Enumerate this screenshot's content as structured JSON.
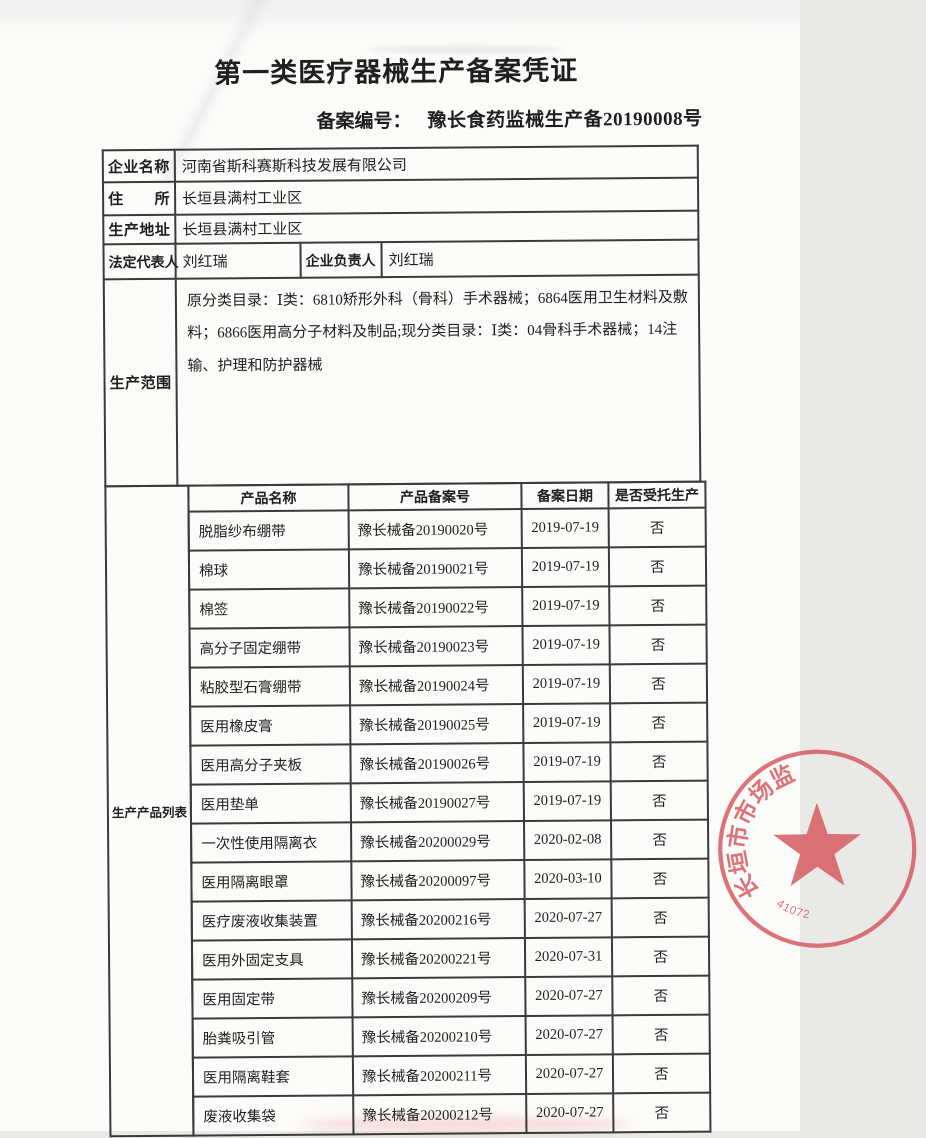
{
  "page": {
    "title": "第一类医疗器械生产备案凭证",
    "record_no_label": "备案编号：",
    "record_no_value": "豫长食药监械生产备20190008号"
  },
  "info": {
    "company_name_label": "企业名称",
    "company_name": "河南省斯科赛斯科技发展有限公司",
    "residence_label": "住　　所",
    "residence": "长垣县满村工业区",
    "production_address_label": "生产地址",
    "production_address": "长垣县满村工业区",
    "legal_rep_label": "法定代表人",
    "legal_rep": "刘红瑞",
    "company_manager_label": "企业负责人",
    "company_manager": "刘红瑞",
    "scope_label": "生产范围",
    "scope": "原分类目录：Ⅰ类：6810矫形外科（骨科）手术器械；6864医用卫生材料及敷料；6866医用高分子材料及制品;现分类目录：Ⅰ类：04骨科手术器械；14注输、护理和防护器械"
  },
  "products": {
    "section_label": "生产产品列表",
    "columns": [
      "产品名称",
      "产品备案号",
      "备案日期",
      "是否受托生产"
    ],
    "rows": [
      {
        "name": "脱脂纱布绷带",
        "record_no": "豫长械备20190020号",
        "date": "2019-07-19",
        "entrusted": "否"
      },
      {
        "name": "棉球",
        "record_no": "豫长械备20190021号",
        "date": "2019-07-19",
        "entrusted": "否"
      },
      {
        "name": "棉签",
        "record_no": "豫长械备20190022号",
        "date": "2019-07-19",
        "entrusted": "否"
      },
      {
        "name": "高分子固定绷带",
        "record_no": "豫长械备20190023号",
        "date": "2019-07-19",
        "entrusted": "否"
      },
      {
        "name": "粘胶型石膏绷带",
        "record_no": "豫长械备20190024号",
        "date": "2019-07-19",
        "entrusted": "否"
      },
      {
        "name": "医用橡皮膏",
        "record_no": "豫长械备20190025号",
        "date": "2019-07-19",
        "entrusted": "否"
      },
      {
        "name": "医用高分子夹板",
        "record_no": "豫长械备20190026号",
        "date": "2019-07-19",
        "entrusted": "否"
      },
      {
        "name": "医用垫单",
        "record_no": "豫长械备20190027号",
        "date": "2019-07-19",
        "entrusted": "否"
      },
      {
        "name": "一次性使用隔离衣",
        "record_no": "豫长械备20200029号",
        "date": "2020-02-08",
        "entrusted": "否"
      },
      {
        "name": "医用隔离眼罩",
        "record_no": "豫长械备20200097号",
        "date": "2020-03-10",
        "entrusted": "否"
      },
      {
        "name": "医疗废液收集装置",
        "record_no": "豫长械备20200216号",
        "date": "2020-07-27",
        "entrusted": "否"
      },
      {
        "name": "医用外固定支具",
        "record_no": "豫长械备20200221号",
        "date": "2020-07-31",
        "entrusted": "否"
      },
      {
        "name": "医用固定带",
        "record_no": "豫长械备20200209号",
        "date": "2020-07-27",
        "entrusted": "否"
      },
      {
        "name": "胎粪吸引管",
        "record_no": "豫长械备20200210号",
        "date": "2020-07-27",
        "entrusted": "否"
      },
      {
        "name": "医用隔离鞋套",
        "record_no": "豫长械备20200211号",
        "date": "2020-07-27",
        "entrusted": "否"
      },
      {
        "name": "废液收集袋",
        "record_no": "豫长械备20200212号",
        "date": "2020-07-27",
        "entrusted": "否"
      }
    ]
  },
  "stamp": {
    "arc_text_visible": "长垣市市场监",
    "code_visible": "41072",
    "color": "#d6565e"
  }
}
